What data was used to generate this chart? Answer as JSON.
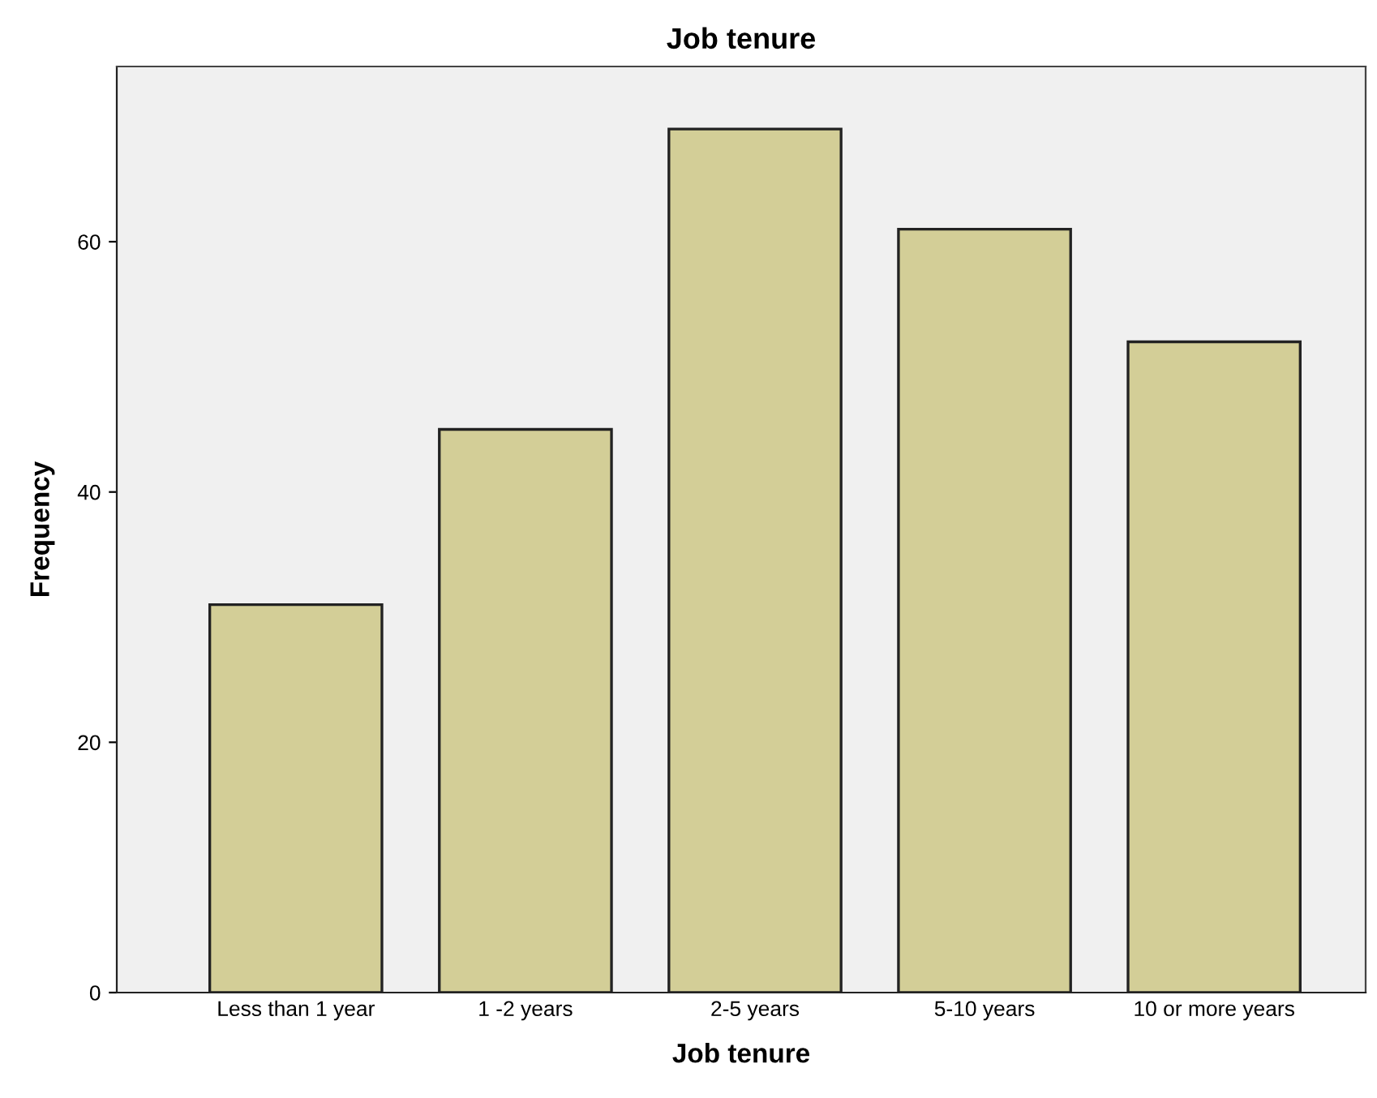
{
  "chart_data": {
    "type": "bar",
    "title": "Job tenure",
    "xlabel": "Job tenure",
    "ylabel": "Frequency",
    "categories": [
      "Less than 1 year",
      "1 -2 years",
      "2-5 years",
      "5-10 years",
      "10 or more years"
    ],
    "values": [
      31,
      45,
      69,
      61,
      52
    ],
    "color": "#d3ce97",
    "ylim": [
      0,
      74
    ],
    "yticks": [
      0,
      20,
      40,
      60
    ],
    "grid": false,
    "legend": false
  }
}
